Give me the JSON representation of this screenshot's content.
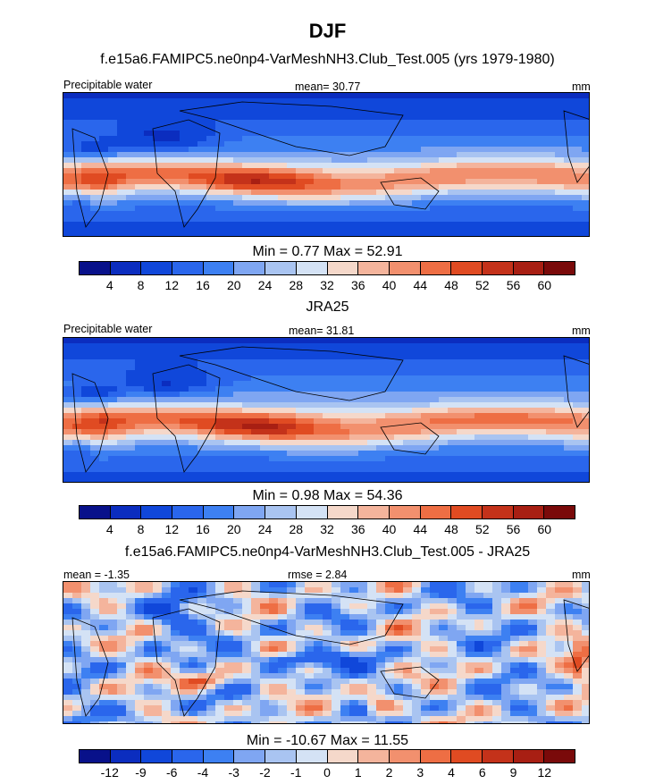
{
  "title": "DJF",
  "chart_data": [
    {
      "type": "heatmap",
      "title": "f.e15a6.FAMIPC5.ne0np4-VarMeshNH3.Club_Test.005 (yrs 1979-1980)",
      "left_label": "Precipitable water",
      "center_label": "mean=  30.77",
      "right_label": "mm",
      "stats": "Min =   0.77 Max =  52.91",
      "colorbar_ticks": [
        "4",
        "8",
        "12",
        "16",
        "20",
        "24",
        "28",
        "32",
        "36",
        "40",
        "44",
        "48",
        "52",
        "56",
        "60"
      ],
      "colorbar_colors": [
        "#08118a",
        "#0b2dbf",
        "#1047da",
        "#2a66ec",
        "#3d80f2",
        "#7fa6f2",
        "#a9c4f1",
        "#d4e2f5",
        "#f5d8ca",
        "#f4b49c",
        "#f2906e",
        "#ee6e44",
        "#e04b22",
        "#c4321a",
        "#a81f13",
        "#7a0a0a"
      ],
      "field": "pw_model",
      "mean": 30.77,
      "min": 0.77,
      "max": 52.91
    },
    {
      "type": "heatmap",
      "title": "JRA25",
      "left_label": "Precipitable water",
      "center_label": "mean=  31.81",
      "right_label": "mm",
      "stats": "Min =   0.98 Max =  54.36",
      "colorbar_ticks": [
        "4",
        "8",
        "12",
        "16",
        "20",
        "24",
        "28",
        "32",
        "36",
        "40",
        "44",
        "48",
        "52",
        "56",
        "60"
      ],
      "colorbar_colors": [
        "#08118a",
        "#0b2dbf",
        "#1047da",
        "#2a66ec",
        "#3d80f2",
        "#7fa6f2",
        "#a9c4f1",
        "#d4e2f5",
        "#f5d8ca",
        "#f4b49c",
        "#f2906e",
        "#ee6e44",
        "#e04b22",
        "#c4321a",
        "#a81f13",
        "#7a0a0a"
      ],
      "field": "pw_obs",
      "mean": 31.81,
      "min": 0.98,
      "max": 54.36
    },
    {
      "type": "heatmap",
      "title": "f.e15a6.FAMIPC5.ne0np4-VarMeshNH3.Club_Test.005 - JRA25",
      "left_label": "mean =  -1.35",
      "center_label": "rmse =   2.84",
      "right_label": "mm",
      "stats": "Min = -10.67 Max =  11.55",
      "colorbar_ticks": [
        "-12",
        "-9",
        "-6",
        "-4",
        "-3",
        "-2",
        "-1",
        "0",
        "1",
        "2",
        "3",
        "4",
        "6",
        "9",
        "12"
      ],
      "colorbar_colors": [
        "#08118a",
        "#0b2dbf",
        "#1047da",
        "#2a66ec",
        "#3d80f2",
        "#7fa6f2",
        "#a9c4f1",
        "#d4e2f5",
        "#f5d8ca",
        "#f4b49c",
        "#f2906e",
        "#ee6e44",
        "#e04b22",
        "#c4321a",
        "#a81f13",
        "#7a0a0a"
      ],
      "field": "pw_diff",
      "mean": -1.35,
      "rmse": 2.84,
      "min": -10.67,
      "max": 11.55
    }
  ]
}
